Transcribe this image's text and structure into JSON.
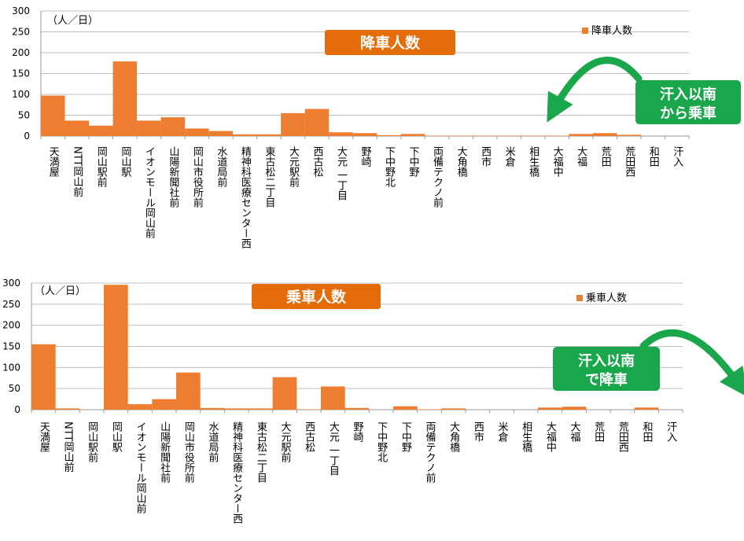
{
  "chart_data": [
    {
      "type": "bar",
      "title": "降車人数",
      "unit_label": "（人／日）",
      "legend": "降車人数",
      "legend_position": "top-right",
      "ylim": [
        0,
        300
      ],
      "yticks": [
        0,
        50,
        100,
        150,
        200,
        250,
        300
      ],
      "grid": true,
      "categories": [
        "天満屋",
        "NTT岡山前",
        "岡山駅前",
        "岡山駅",
        "イオンモール岡山前",
        "山陽新聞社前",
        "岡山市役所前",
        "水道局前",
        "精神科医療センター西",
        "東古松二丁目",
        "大元駅前",
        "西古松",
        "大元 一丁目",
        "野崎",
        "下中野北",
        "下中野",
        "両備テクノ前",
        "大角橋",
        "西市",
        "米倉",
        "相生橋",
        "大福中",
        "大福",
        "荒田",
        "荒田西",
        "和田",
        "汗入"
      ],
      "values": [
        97,
        37,
        25,
        179,
        37,
        45,
        18,
        12,
        4,
        4,
        55,
        65,
        9,
        7,
        2,
        5,
        1,
        1,
        1,
        1,
        1,
        1,
        5,
        7,
        3,
        0,
        0
      ],
      "bar_color": "#ed7d31",
      "callout": {
        "line1": "汗入以南",
        "line2": "から乗車",
        "color": "#1aa64b"
      }
    },
    {
      "type": "bar",
      "title": "乗車人数",
      "unit_label": "（人／日）",
      "legend": "乗車人数",
      "legend_position": "top-right",
      "ylim": [
        0,
        300
      ],
      "yticks": [
        0,
        50,
        100,
        150,
        200,
        250,
        300
      ],
      "grid": true,
      "categories": [
        "天満屋",
        "NTT岡山前",
        "岡山駅前",
        "岡山駅",
        "イオンモール岡山前",
        "山陽新聞社前",
        "岡山市役所前",
        "水道局前",
        "精神科医療センター西",
        "東古松二丁目",
        "大元駅前",
        "西古松",
        "大元 一丁目",
        "野崎",
        "下中野北",
        "下中野",
        "両備テクノ前",
        "大角橋",
        "西市",
        "米倉",
        "相生橋",
        "大福中",
        "大福",
        "荒田",
        "荒田西",
        "和田",
        "汗入"
      ],
      "values": [
        155,
        3,
        0,
        296,
        13,
        25,
        88,
        4,
        3,
        3,
        77,
        1,
        55,
        4,
        0,
        8,
        1,
        3,
        0,
        0,
        0,
        5,
        7,
        0,
        0,
        5,
        0
      ],
      "bar_color": "#ed7d31",
      "callout": {
        "line1": "汗入以南",
        "line2": "で降車",
        "color": "#1aa64b"
      }
    }
  ]
}
